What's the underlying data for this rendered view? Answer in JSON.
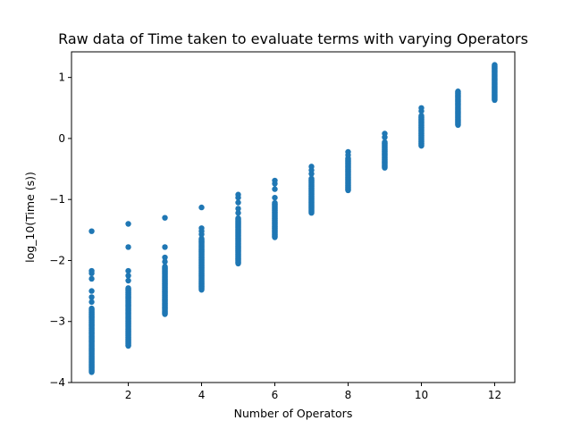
{
  "chart_data": {
    "type": "scatter",
    "title": "Raw data of Time taken to evaluate terms with varying Operators",
    "xlabel": "Number of Operators",
    "ylabel": "log_10(Time (s))",
    "xlim": [
      0.45,
      12.55
    ],
    "ylim": [
      -4.0,
      1.42
    ],
    "xticks": [
      2,
      4,
      6,
      8,
      10,
      12
    ],
    "yticks": [
      -4,
      -3,
      -2,
      -1,
      0,
      1
    ],
    "ytick_labels": [
      "−4",
      "−3",
      "−2",
      "−1",
      "0",
      "1"
    ],
    "grid": false,
    "marker_color": "#1f77b4",
    "columns": [
      {
        "x": 1,
        "y_range": [
          -3.83,
          -2.78
        ],
        "outliers": [
          -1.52,
          -2.17,
          -2.21,
          -2.3,
          -2.5,
          -2.6,
          -2.68
        ]
      },
      {
        "x": 2,
        "y_range": [
          -3.4,
          -2.45
        ],
        "outliers": [
          -1.4,
          -1.78,
          -2.17,
          -2.25,
          -2.33
        ]
      },
      {
        "x": 3,
        "y_range": [
          -2.88,
          -2.1
        ],
        "outliers": [
          -1.3,
          -1.78,
          -1.95,
          -2.02
        ]
      },
      {
        "x": 4,
        "y_range": [
          -2.48,
          -1.63
        ],
        "outliers": [
          -1.13,
          -1.47,
          -1.52,
          -1.57
        ]
      },
      {
        "x": 5,
        "y_range": [
          -2.05,
          -1.3
        ],
        "outliers": [
          -0.92,
          -0.97,
          -1.05,
          -1.15,
          -1.22
        ]
      },
      {
        "x": 6,
        "y_range": [
          -1.62,
          -1.05
        ],
        "outliers": [
          -0.69,
          -0.74,
          -0.83,
          -0.97
        ]
      },
      {
        "x": 7,
        "y_range": [
          -1.22,
          -0.65
        ],
        "outliers": [
          -0.46,
          -0.52,
          -0.58
        ]
      },
      {
        "x": 8,
        "y_range": [
          -0.85,
          -0.32
        ],
        "outliers": [
          -0.22,
          -0.27
        ]
      },
      {
        "x": 9,
        "y_range": [
          -0.48,
          -0.05
        ],
        "outliers": [
          0.08,
          0.02
        ]
      },
      {
        "x": 10,
        "y_range": [
          -0.12,
          0.38
        ],
        "outliers": [
          0.5,
          0.45
        ]
      },
      {
        "x": 11,
        "y_range": [
          0.22,
          0.78
        ],
        "outliers": []
      },
      {
        "x": 12,
        "y_range": [
          0.63,
          1.21
        ],
        "outliers": []
      }
    ]
  }
}
